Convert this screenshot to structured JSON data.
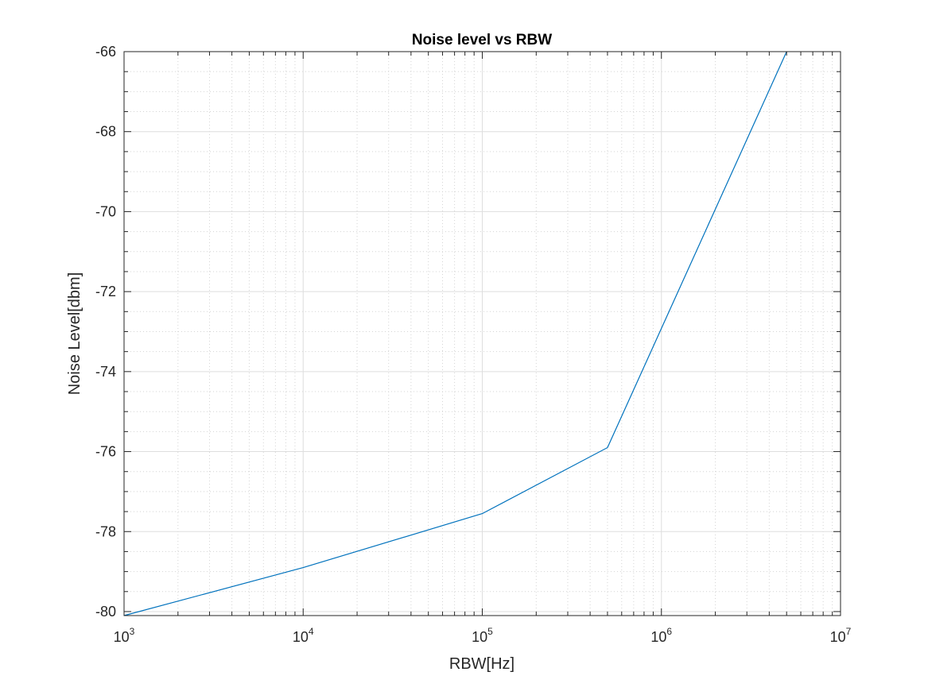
{
  "chart_data": {
    "type": "line",
    "title": "Noise level vs RBW",
    "xlabel": "RBW[Hz]",
    "ylabel": "Noise Level[dbm]",
    "xscale": "log",
    "xlim": [
      1000,
      10000000
    ],
    "ylim": [
      -80.1,
      -66
    ],
    "x_ticks": [
      {
        "base": "10",
        "exp": "3",
        "value": 1000
      },
      {
        "base": "10",
        "exp": "4",
        "value": 10000
      },
      {
        "base": "10",
        "exp": "5",
        "value": 100000
      },
      {
        "base": "10",
        "exp": "6",
        "value": 1000000
      },
      {
        "base": "10",
        "exp": "7",
        "value": 10000000
      }
    ],
    "y_ticks": [
      {
        "label": "-80",
        "value": -80
      },
      {
        "label": "-78",
        "value": -78
      },
      {
        "label": "-76",
        "value": -76
      },
      {
        "label": "-74",
        "value": -74
      },
      {
        "label": "-72",
        "value": -72
      },
      {
        "label": "-70",
        "value": -70
      },
      {
        "label": "-68",
        "value": -68
      },
      {
        "label": "-66",
        "value": -66
      }
    ],
    "grid": true,
    "minor_grid": true,
    "series": [
      {
        "color": "#0072BD",
        "x": [
          1000,
          10000,
          100000,
          500000,
          5000000
        ],
        "y": [
          -80.1,
          -78.9,
          -77.55,
          -75.9,
          -66.0
        ]
      }
    ]
  }
}
